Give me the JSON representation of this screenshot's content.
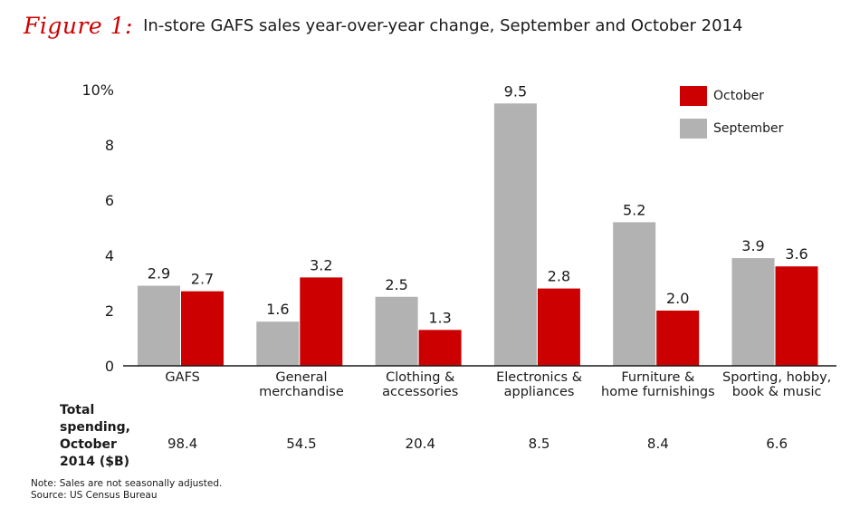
{
  "figure_label": "Figure 1:",
  "title": "In-store GAFS sales year-over-year change, September and October 2014",
  "chart_data": {
    "type": "bar",
    "categories": [
      [
        "GAFS"
      ],
      [
        "General",
        "merchandise"
      ],
      [
        "Clothing &",
        "accessories"
      ],
      [
        "Electronics &",
        "appliances"
      ],
      [
        "Furniture &",
        "home furnishings"
      ],
      [
        "Sporting, hobby,",
        "book & music"
      ]
    ],
    "series": [
      {
        "name": "September",
        "color": "#b2b2b2",
        "values": [
          2.9,
          1.6,
          2.5,
          9.5,
          5.2,
          3.9
        ],
        "labels": [
          "2.9",
          "1.6",
          "2.5",
          "9.5",
          "5.2",
          "3.9"
        ]
      },
      {
        "name": "October",
        "color": "#cc0000",
        "values": [
          2.7,
          3.2,
          1.3,
          2.8,
          2.0,
          3.6
        ],
        "labels": [
          "2.7",
          "3.2",
          "1.3",
          "2.8",
          "2.0",
          "3.6"
        ]
      }
    ],
    "legend_order": [
      "October",
      "September"
    ],
    "legend_position": "top-right",
    "yticks": [
      0,
      2,
      4,
      6,
      8,
      10
    ],
    "ytick_labels": [
      "0",
      "2",
      "4",
      "6",
      "8",
      "10%"
    ],
    "ylim": [
      0,
      10
    ],
    "grid": false
  },
  "totals": {
    "label_lines": [
      "Total",
      "spending,",
      "October",
      "2014 ($B)"
    ],
    "values": [
      "98.4",
      "54.5",
      "20.4",
      "8.5",
      "8.4",
      "6.6"
    ]
  },
  "note_lines": [
    "Note: Sales are not seasonally adjusted.",
    "Source: US Census Bureau"
  ]
}
